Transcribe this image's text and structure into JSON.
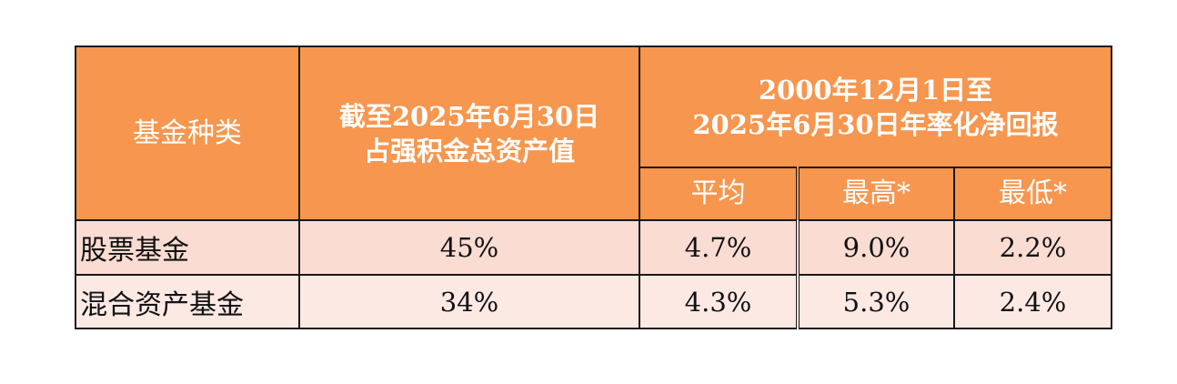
{
  "header": {
    "col_fund_type": "基金种类",
    "col_asset_share": [
      "截至2025年6月30日",
      "占强积金总资产值"
    ],
    "col_return_group": [
      "2000年12月1日至",
      "2025年6月30日年率化净回报"
    ],
    "sub_avg": "平均",
    "sub_high": "最高*",
    "sub_low": "最低*"
  },
  "rows": [
    {
      "name": "股票基金",
      "share": "45%",
      "avg": "4.7%",
      "high": "9.0%",
      "low": "2.2%"
    },
    {
      "name": "混合资产基金",
      "share": "34%",
      "avg": "4.3%",
      "high": "5.3%",
      "low": "2.4%"
    }
  ],
  "colors": {
    "header_bg": "#f7964e",
    "row1_bg": "#fbdcd2",
    "row2_bg": "#fde9e4"
  }
}
